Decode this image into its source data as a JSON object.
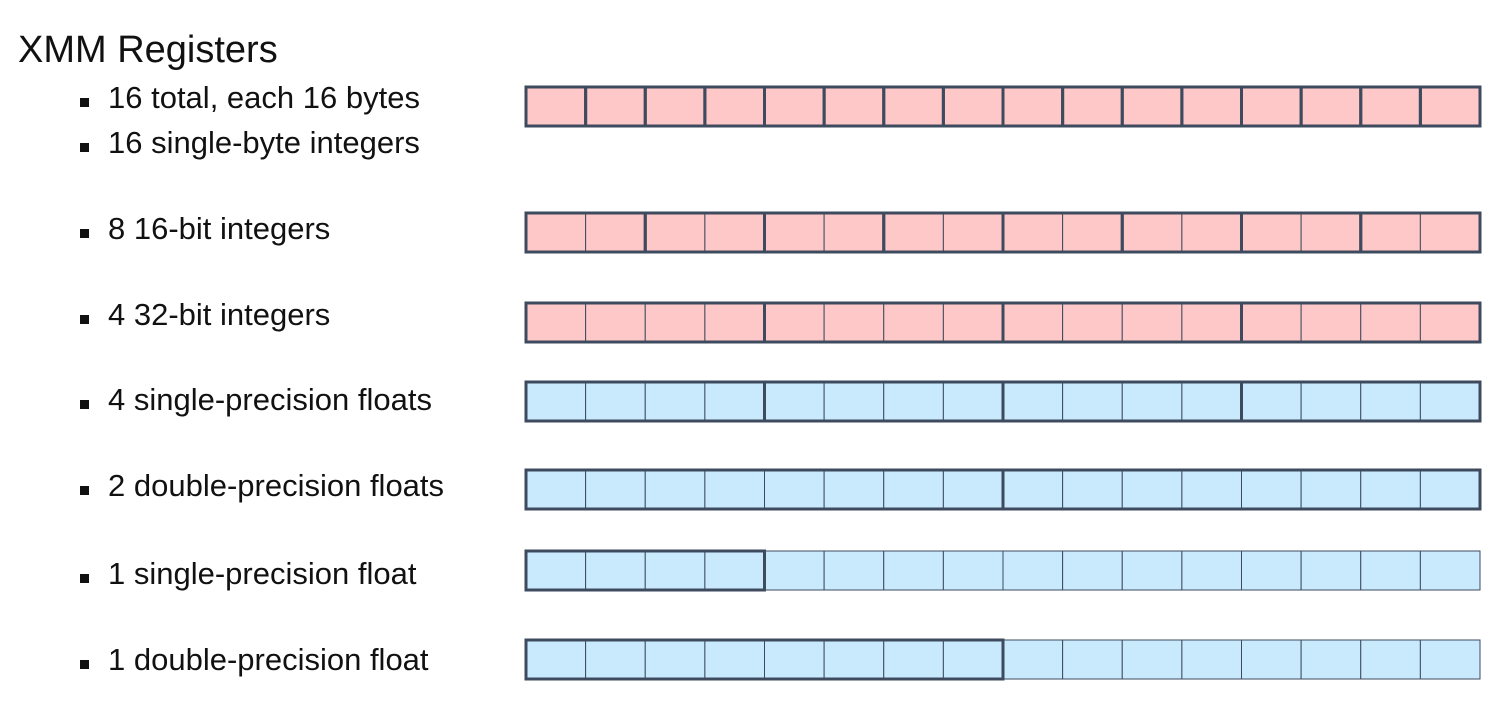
{
  "title": "XMM Registers",
  "bullets": [
    "16 total, each 16 bytes",
    "16 single-byte integers",
    "8 16-bit integers",
    "4 32-bit integers",
    "4 single-precision floats",
    "2 double-precision floats",
    "1 single-precision float",
    "1 double-precision float"
  ],
  "colors": {
    "integer_fill": "#ffc8c8",
    "float_fill": "#c9eafd",
    "border": "#3e4b5e",
    "text": "#111111"
  },
  "registers": [
    {
      "type": "integer",
      "bytes_per_element": 1,
      "element_count": 16
    },
    {
      "type": "integer",
      "bytes_per_element": 2,
      "element_count": 8
    },
    {
      "type": "integer",
      "bytes_per_element": 4,
      "element_count": 4
    },
    {
      "type": "float",
      "bytes_per_element": 4,
      "element_count": 4
    },
    {
      "type": "float",
      "bytes_per_element": 8,
      "element_count": 2
    },
    {
      "type": "float",
      "bytes_per_element": 4,
      "element_count": 1
    },
    {
      "type": "float",
      "bytes_per_element": 8,
      "element_count": 1
    }
  ],
  "register_size_bytes": 16
}
